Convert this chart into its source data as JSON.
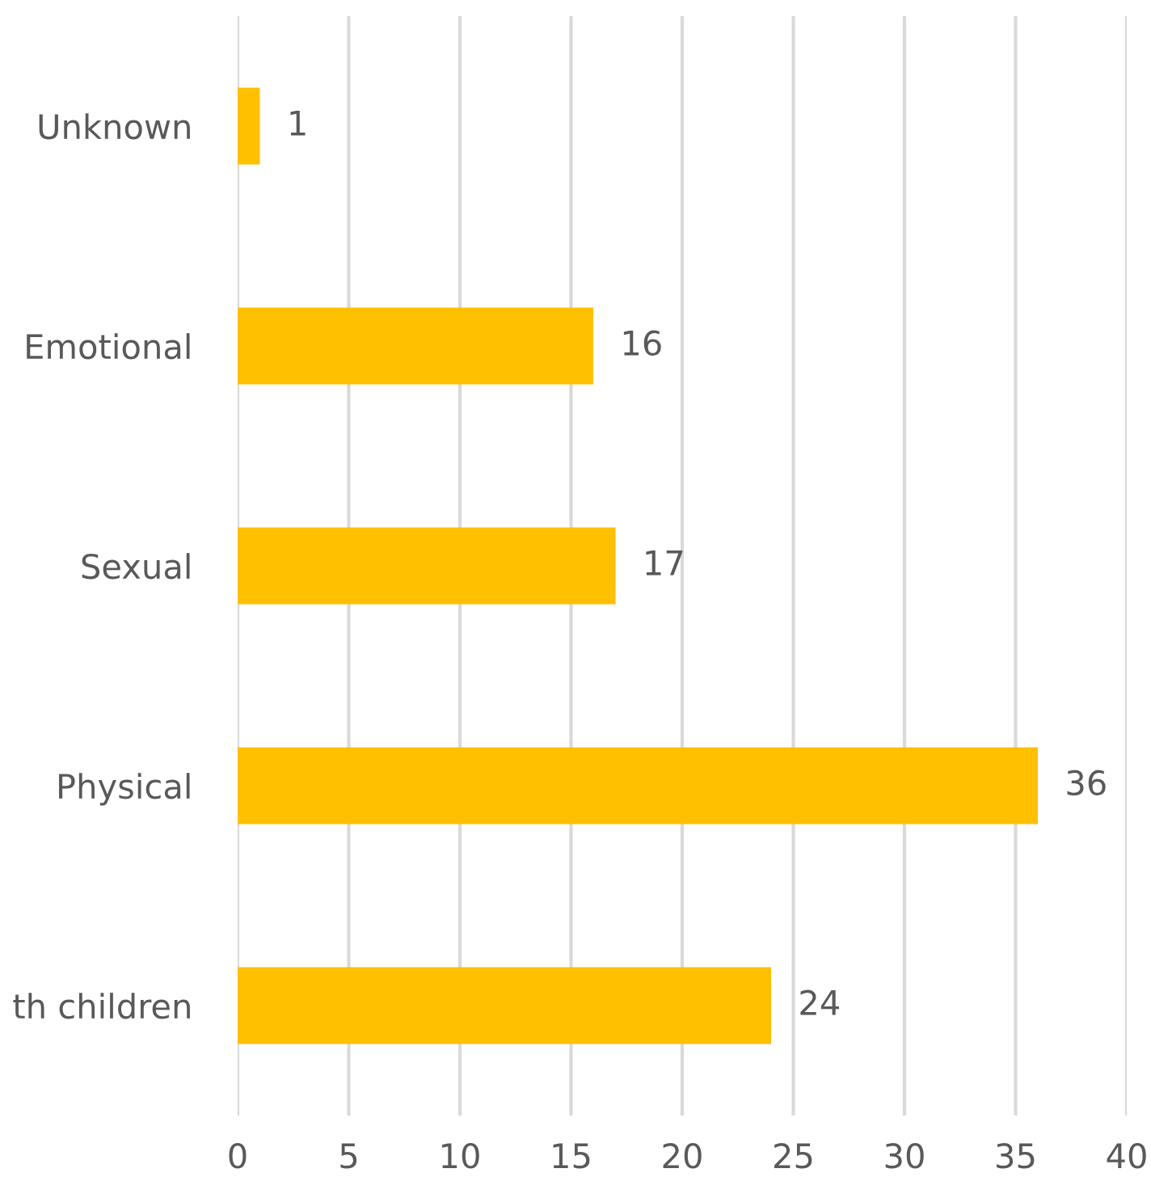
{
  "chart_data": {
    "type": "bar",
    "orientation": "horizontal",
    "categories": [
      "Unknown",
      "Emotional",
      "Sexual",
      "Physical",
      "th children"
    ],
    "values": [
      1,
      16,
      17,
      36,
      24
    ],
    "color": "#ffc000",
    "xlim": [
      0,
      40
    ],
    "xticks": [
      0,
      5,
      10,
      15,
      20,
      25,
      30,
      35,
      40
    ],
    "grid": "x",
    "data_labels": true
  }
}
